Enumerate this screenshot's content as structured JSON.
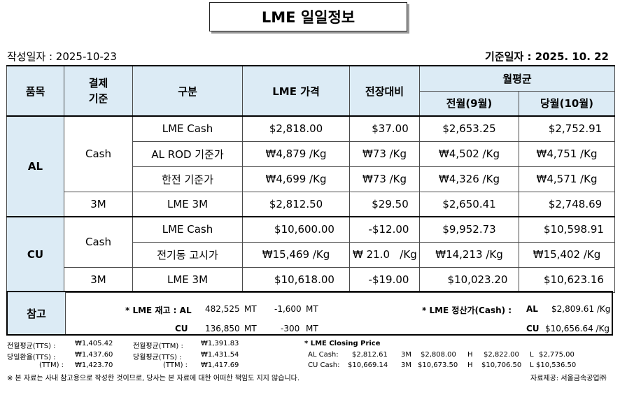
{
  "title": "LME 일일정보",
  "created": "작성일자 :  2025-10-23",
  "base_date": "기준일자 : 2025.  10.  22",
  "headers": {
    "item": "품목",
    "settle": "결제\n기준",
    "category": "구분",
    "lme_price": "LME 가격",
    "vs_prev": "전장대비",
    "monthly_avg": "월평균",
    "prev_month": "전월(9월)",
    "curr_month": "당월(10월)"
  },
  "al": {
    "label": "AL",
    "cash_label": "Cash",
    "m3_label": "3M",
    "rows": [
      {
        "name": "LME Cash",
        "price": "$2,818.00",
        "diff": "$37.00",
        "prev": "$2,653.25",
        "curr": "$2,752.91"
      },
      {
        "name": "AL ROD 기준가",
        "price": "₩4,879 /Kg",
        "diff": "₩73 /Kg",
        "prev": "₩4,502 /Kg",
        "curr": "₩4,751 /Kg"
      },
      {
        "name": "한전 기준가",
        "price": "₩4,699 /Kg",
        "diff": "₩73 /Kg",
        "prev": "₩4,326 /Kg",
        "curr": "₩4,571 /Kg"
      },
      {
        "name": "LME  3M",
        "price": "$2,812.50",
        "diff": "$29.50",
        "prev": "$2,650.41",
        "curr": "$2,748.69"
      }
    ]
  },
  "cu": {
    "label": "CU",
    "cash_label": "Cash",
    "m3_label": "3M",
    "rows": [
      {
        "name": "LME Cash",
        "price": "$10,600.00",
        "diff": "-$12.00",
        "prev": "$9,952.73",
        "curr": "$10,598.91"
      },
      {
        "name": "전기동 고시가",
        "price": "₩15,469 /Kg",
        "diff": "₩ 21.0   /Kg",
        "prev": "₩14,213 /Kg",
        "curr": "₩15,402 /Kg"
      },
      {
        "name": "LME 3M",
        "price": "$10,618.00",
        "diff": "-$19.00",
        "prev": "$10,023.20",
        "curr": "$10,623.16"
      }
    ]
  },
  "reference": {
    "label": "참고",
    "stock_title": "* LME 재고 : AL",
    "stock_al": "482,525",
    "stock_al_unit": "MT",
    "stock_al_diff": "-1,600",
    "stock_al_diff_unit": "MT",
    "stock_cu_label": "CU",
    "stock_cu": "136,850",
    "stock_cu_unit": "MT",
    "stock_cu_diff": "-300",
    "stock_cu_diff_unit": "MT",
    "settle_title": "* LME 정산가(Cash) :",
    "settle_al_label": "AL",
    "settle_al": "$2,809.61 /Kg",
    "settle_cu_label": "CU",
    "settle_cu": "$10,656.64 /Kg"
  },
  "footer": {
    "r1a_label": "전월평균(TTS) :",
    "r1a_val": "₩1,405.42",
    "r1b_label": "전월평균(TTM) :",
    "r1b_val": "₩1,391.83",
    "r2a_label": "당일환율(TTS) :",
    "r2a_val": "₩1,437.60",
    "r2b_label": "당월평균(TTS) :",
    "r2b_val": "₩1,431.54",
    "r3a_label": "(TTM) :",
    "r3a_val": "₩1,423.70",
    "r3b_label": "(TTM) :",
    "r3b_val": "₩1,417.69",
    "closing_title": "* LME Closing Price",
    "al_cash_label": "AL  Cash:",
    "al_cash": "$2,812.61",
    "al_3m_label": "3M",
    "al_3m": "$2,808.00",
    "al_h_label": "H",
    "al_h": "$2,822.00",
    "al_l_label": "L",
    "al_l": "$2,775.00",
    "cu_cash_label": "CU  Cash:",
    "cu_cash": "$10,669.14",
    "cu_3m_label": "3M",
    "cu_3m": "$10,673.50",
    "cu_h_label": "H",
    "cu_h": "$10,706.50",
    "cu_l_label": "L",
    "cu_l": "$10,536.50",
    "disclaimer": "※ 본 자료는 사내 참고용으로 작성한 것이므로, 당사는 본 자료에 대한 어떠한 책임도 지지 않습니다.",
    "source": "자료제공: 서울금속공업㈜"
  }
}
